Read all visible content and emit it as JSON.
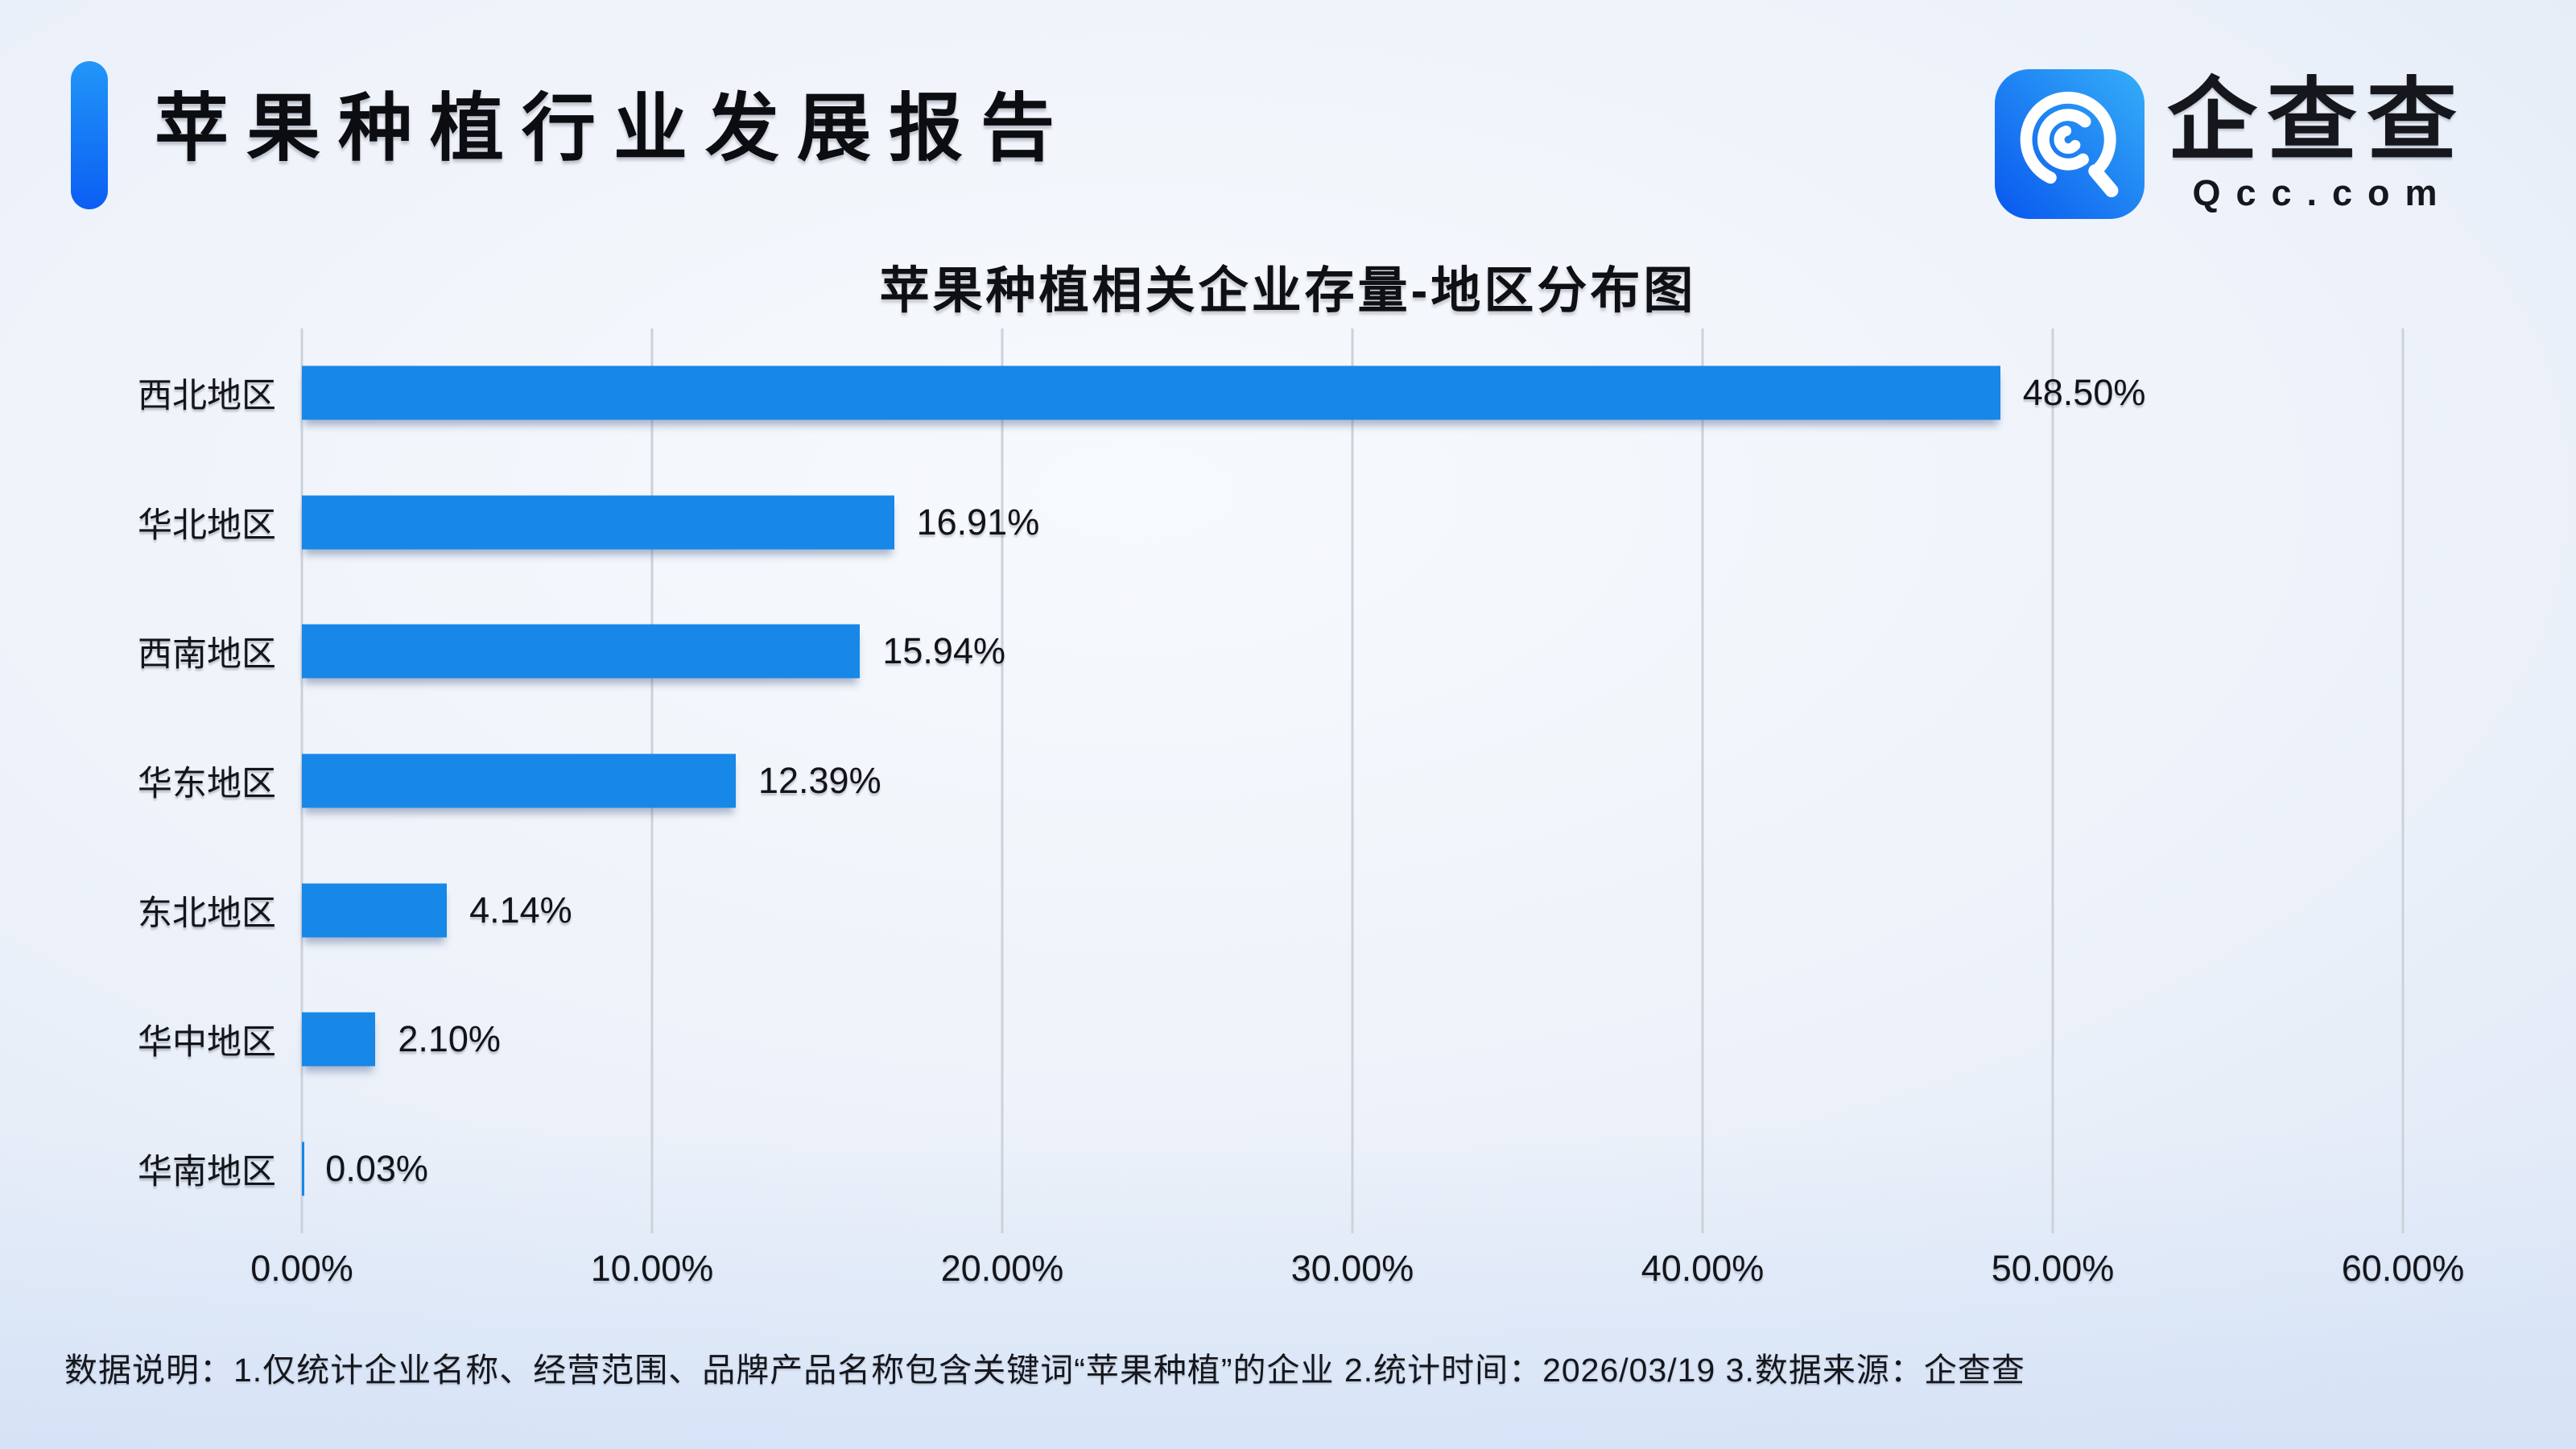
{
  "header": {
    "title": "苹果种植行业发展报告"
  },
  "logo": {
    "brand": "企查查",
    "domain": "Qcc.com"
  },
  "chart_data": {
    "type": "bar",
    "orientation": "horizontal",
    "title": "苹果种植相关企业存量-地区分布图",
    "categories": [
      "西北地区",
      "华北地区",
      "西南地区",
      "华东地区",
      "东北地区",
      "华中地区",
      "华南地区"
    ],
    "values": [
      48.5,
      16.91,
      15.94,
      12.39,
      4.14,
      2.1,
      0.03
    ],
    "value_labels": [
      "48.50%",
      "16.91%",
      "15.94%",
      "12.39%",
      "4.14%",
      "2.10%",
      "0.03%"
    ],
    "x_ticks": [
      "0.00%",
      "10.00%",
      "20.00%",
      "30.00%",
      "40.00%",
      "50.00%",
      "60.00%"
    ],
    "xlim": [
      0,
      60
    ],
    "grid": true,
    "legend": "none",
    "bar_color": "#1787E8",
    "gridline_color": "#cdd1da"
  },
  "footer": {
    "note": "数据说明：1.仅统计企业名称、经营范围、品牌产品名称包含关键词“苹果种植”的企业  2.统计时间：2026/03/19   3.数据来源：企查查"
  },
  "colors": {
    "accent_top": "#2196f8",
    "accent_bottom": "#0b5ef3",
    "text": "#0c0d10",
    "background_edge": "#e0e9f7",
    "background_center": "#f7fafd"
  }
}
